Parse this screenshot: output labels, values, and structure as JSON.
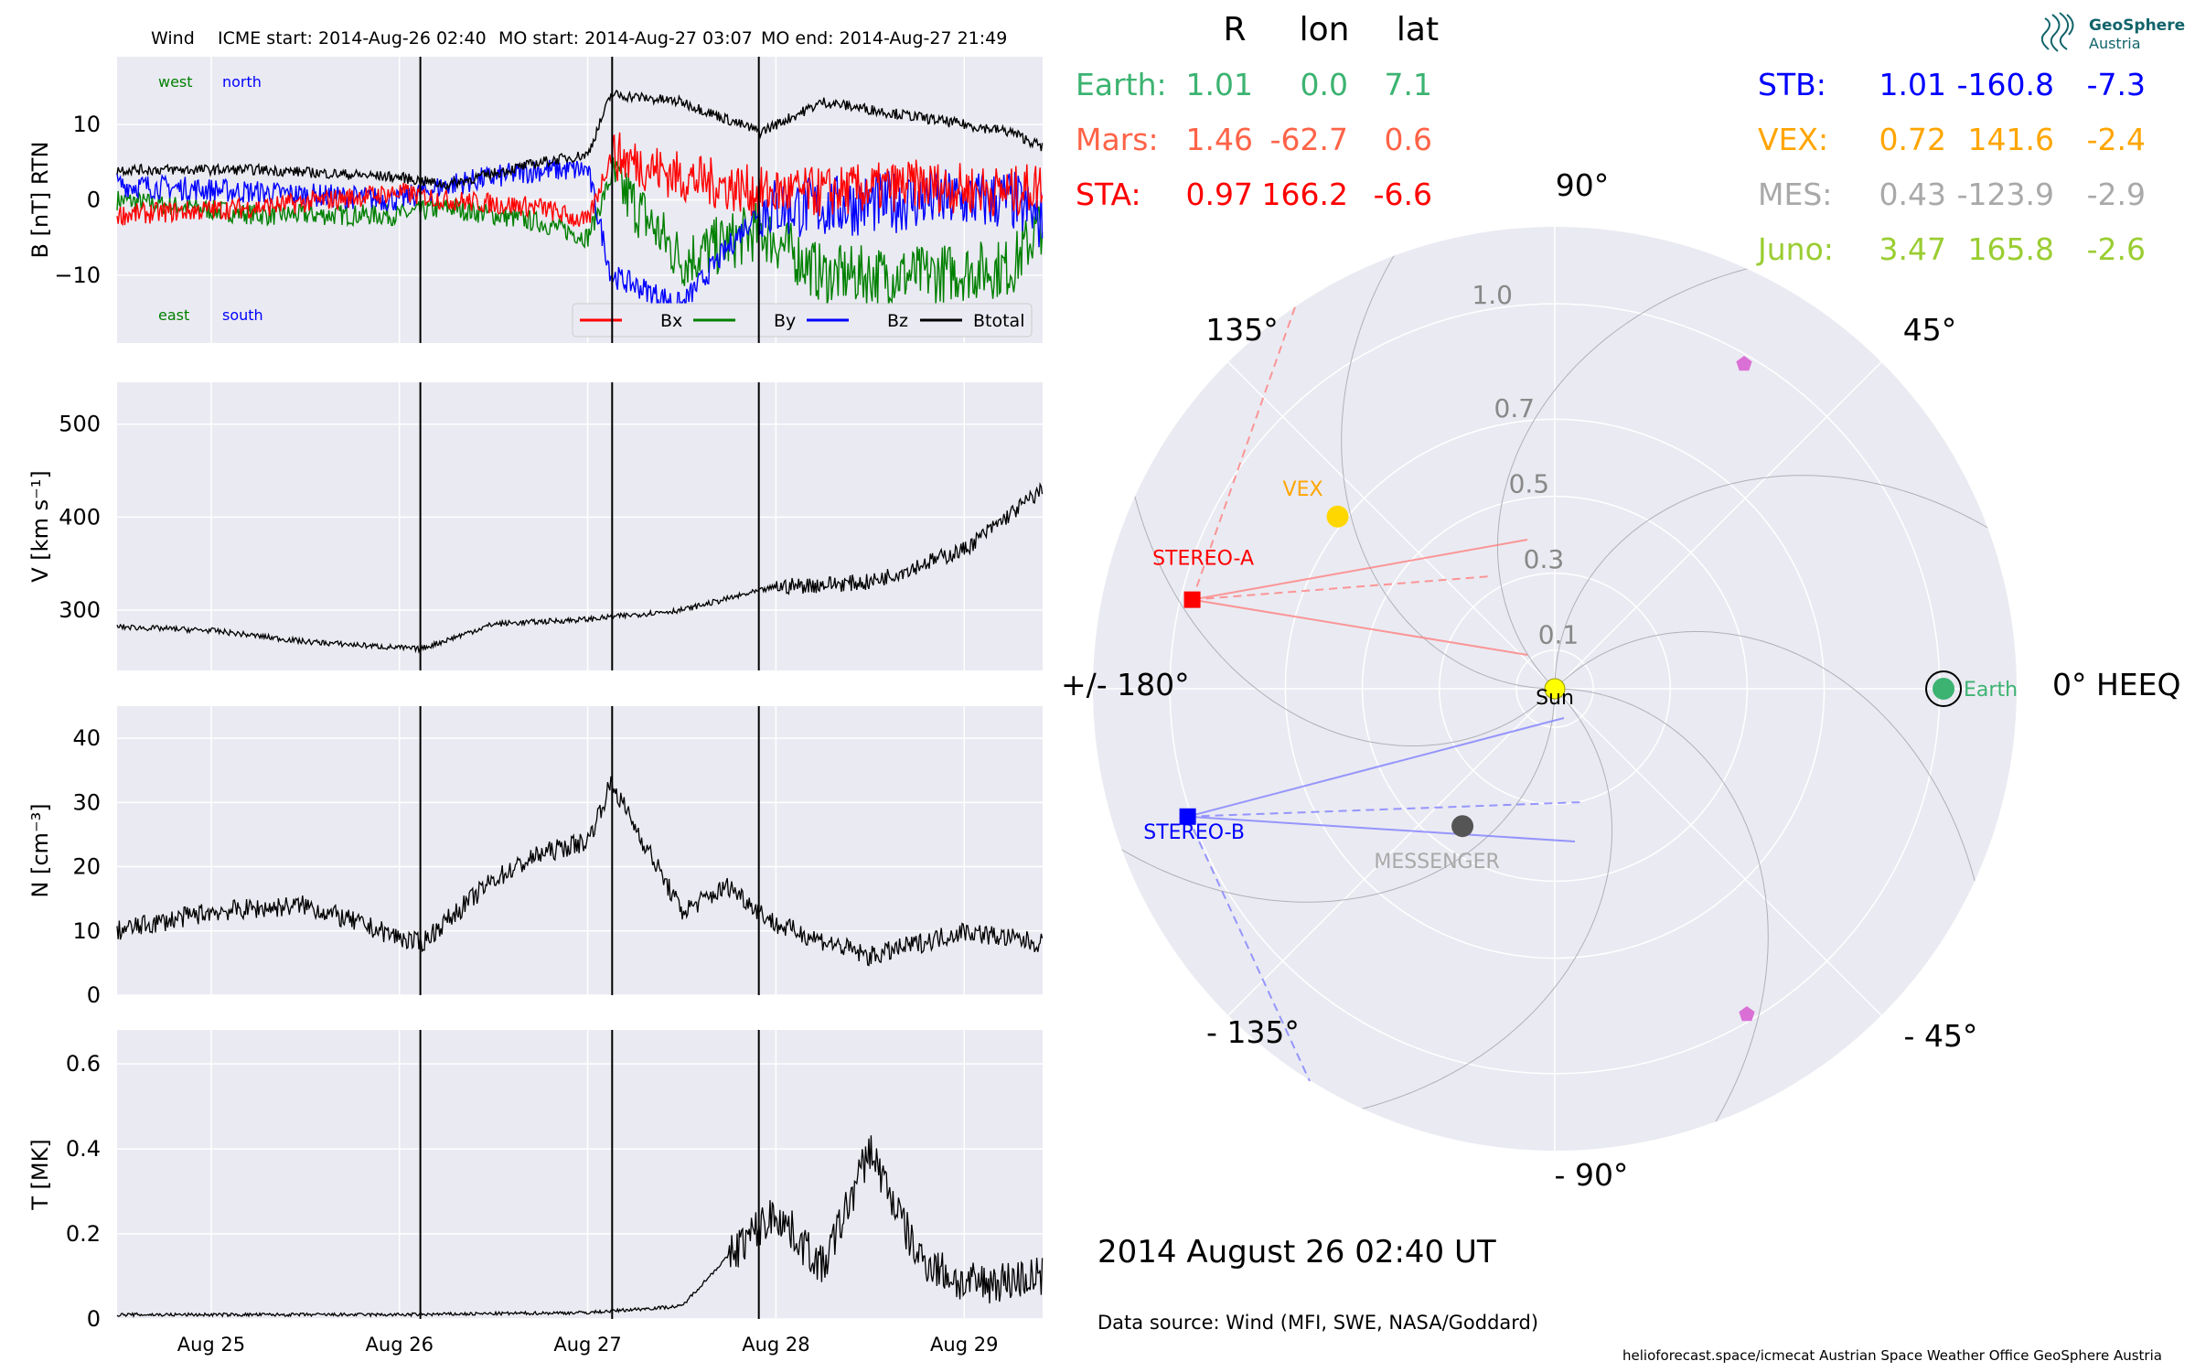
{
  "header": {
    "spacecraft": "Wind",
    "icme_start": "ICME start: 2014-Aug-26 02:40",
    "mo_start": "MO start: 2014-Aug-27 03:07",
    "mo_end": "MO end: 2014-Aug-27 21:49"
  },
  "logo": {
    "name": "GeoSphere",
    "sub": "Austria"
  },
  "table": {
    "headers": [
      "R",
      "lon",
      "lat"
    ],
    "left": [
      {
        "name": "Earth:",
        "R": "1.01",
        "lon": "0.0",
        "lat": "7.1",
        "color": "#3cb371"
      },
      {
        "name": "Mars:",
        "R": "1.46",
        "lon": "-62.7",
        "lat": "0.6",
        "color": "#ff6347"
      },
      {
        "name": "STA:",
        "R": "0.97",
        "lon": "166.2",
        "lat": "-6.6",
        "color": "#ff0000"
      }
    ],
    "right": [
      {
        "name": "STB:",
        "R": "1.01",
        "lon": "-160.8",
        "lat": "-7.3",
        "color": "#0000ff"
      },
      {
        "name": "VEX:",
        "R": "0.72",
        "lon": "141.6",
        "lat": "-2.4",
        "color": "#ffa500"
      },
      {
        "name": "MES:",
        "R": "0.43",
        "lon": "-123.9",
        "lat": "-2.9",
        "color": "#a9a9a9"
      },
      {
        "name": "Juno:",
        "R": "3.47",
        "lon": "165.8",
        "lat": "-2.6",
        "color": "#9acd32"
      }
    ]
  },
  "polar": {
    "angle_labels": [
      {
        "text": "90°",
        "deg": 90
      },
      {
        "text": "45°",
        "deg": 45
      },
      {
        "text": "0° HEEQ",
        "deg": 0
      },
      {
        "text": "- 45°",
        "deg": -45
      },
      {
        "text": "- 90°",
        "deg": -90
      },
      {
        "text": "- 135°",
        "deg": -135
      },
      {
        "text": "+/- 180°",
        "deg": 180
      },
      {
        "text": "135°",
        "deg": 135
      }
    ],
    "radial_labels": [
      "0.1",
      "0.3",
      "0.5",
      "0.7",
      "1.0"
    ],
    "radial_values": [
      0.1,
      0.3,
      0.5,
      0.7,
      1.0
    ],
    "bodies": [
      {
        "label": "Sun",
        "r": 0,
        "lon": 0,
        "color": "#ffff00"
      },
      {
        "label": "Earth",
        "r": 1.01,
        "lon": 0.0,
        "color": "#3cb371"
      },
      {
        "label": "VEX",
        "r": 0.72,
        "lon": 141.6,
        "color": "#ffd700"
      },
      {
        "label": "MESSENGER",
        "r": 0.43,
        "lon": -123.9,
        "color": "#555555"
      },
      {
        "label": "STEREO-A",
        "r": 0.97,
        "lon": 166.2,
        "color": "#ff0000"
      },
      {
        "label": "STEREO-B",
        "r": 1.01,
        "lon": -160.8,
        "color": "#0000ff"
      }
    ],
    "date": "2014 August 26  02:40 UT",
    "source": "Data source: Wind (MFI, SWE, NASA/Goddard)",
    "credits": "helioforecast.space/icmecat   Austrian Space Weather Office   GeoSphere Austria"
  },
  "chart_data": [
    {
      "type": "line",
      "ylabel": "B [nT] RTN",
      "ylim": [
        -19,
        19
      ],
      "yticks": [
        -10,
        0,
        10
      ],
      "annotations": {
        "top_left": [
          "west",
          "north"
        ],
        "bottom_left": [
          "east",
          "south"
        ]
      },
      "legend": [
        "Bx",
        "By",
        "Bz",
        "Btotal"
      ],
      "colors": {
        "Bx": "#ff0000",
        "By": "#008000",
        "Bz": "#0000ff",
        "Btotal": "#000000"
      },
      "x_dates": [
        "Aug 24 12:00",
        "Aug 25 06:00",
        "Aug 26 00:00",
        "Aug 26 06:00",
        "Aug 26 18:00",
        "Aug 27 00:00",
        "Aug 27 03:00",
        "Aug 27 12:00",
        "Aug 27 22:00",
        "Aug 28 06:00",
        "Aug 28 18:00",
        "Aug 29 06:00",
        "Aug 29 10:00"
      ],
      "series": [
        {
          "name": "Btotal",
          "values": [
            4,
            4,
            3,
            2,
            5,
            6,
            14,
            13,
            9,
            13,
            11,
            9,
            7
          ]
        },
        {
          "name": "Bx",
          "values": [
            -2,
            -1,
            1,
            0,
            -1,
            -3,
            6,
            3,
            1,
            1,
            2,
            1,
            2
          ]
        },
        {
          "name": "By",
          "values": [
            0,
            -2,
            -2,
            -1,
            -3,
            -5,
            3,
            -8,
            -4,
            -10,
            -10,
            -9,
            -3
          ]
        },
        {
          "name": "Bz",
          "values": [
            2,
            1,
            0,
            2,
            4,
            4,
            -10,
            -14,
            -1,
            -1,
            0,
            0,
            -3
          ]
        }
      ]
    },
    {
      "type": "line",
      "ylabel": "V [km s⁻¹]",
      "ylim": [
        235,
        545
      ],
      "yticks": [
        300,
        400,
        500
      ],
      "x_dates": [
        "Aug 24 12:00",
        "Aug 25 00:00",
        "Aug 25 12:00",
        "Aug 26 02:40",
        "Aug 26 12:00",
        "Aug 27 00:00",
        "Aug 27 12:00",
        "Aug 28 00:00",
        "Aug 28 12:00",
        "Aug 29 00:00",
        "Aug 29 10:00"
      ],
      "values": [
        282,
        278,
        266,
        258,
        285,
        290,
        300,
        325,
        330,
        365,
        430
      ]
    },
    {
      "type": "line",
      "ylabel": "N [cm⁻³]",
      "ylim": [
        0,
        45
      ],
      "yticks": [
        0,
        10,
        20,
        30,
        40
      ],
      "x_dates": [
        "Aug 24 12:00",
        "Aug 25 00:00",
        "Aug 25 12:00",
        "Aug 26 00:00",
        "Aug 26 02:40",
        "Aug 26 12:00",
        "Aug 26 18:00",
        "Aug 27 00:00",
        "Aug 27 03:00",
        "Aug 27 12:00",
        "Aug 27 18:00",
        "Aug 28 00:00",
        "Aug 28 12:00",
        "Aug 29 00:00",
        "Aug 29 10:00"
      ],
      "values": [
        10,
        13,
        14,
        9,
        8,
        18,
        22,
        24,
        33,
        13,
        17,
        11,
        6,
        10,
        8
      ]
    },
    {
      "type": "line",
      "ylabel": "T [MK]",
      "ylim": [
        0,
        0.68
      ],
      "yticks": [
        0.0,
        0.2,
        0.4,
        0.6
      ],
      "xticks": [
        "Aug 25",
        "Aug 26",
        "Aug 27",
        "Aug 28",
        "Aug 29"
      ],
      "x_dates": [
        "Aug 24 12:00",
        "Aug 26 00:00",
        "Aug 27 00:00",
        "Aug 27 12:00",
        "Aug 27 18:00",
        "Aug 28 00:00",
        "Aug 28 06:00",
        "Aug 28 12:00",
        "Aug 28 18:00",
        "Aug 29 00:00",
        "Aug 29 10:00"
      ],
      "values": [
        0.01,
        0.01,
        0.015,
        0.03,
        0.15,
        0.25,
        0.12,
        0.4,
        0.15,
        0.08,
        0.1
      ]
    }
  ],
  "events": {
    "labels": [
      "ICME start",
      "MO start",
      "MO end"
    ],
    "times": [
      "Aug 26 02:40",
      "Aug 27 03:07",
      "Aug 27 21:49"
    ]
  }
}
